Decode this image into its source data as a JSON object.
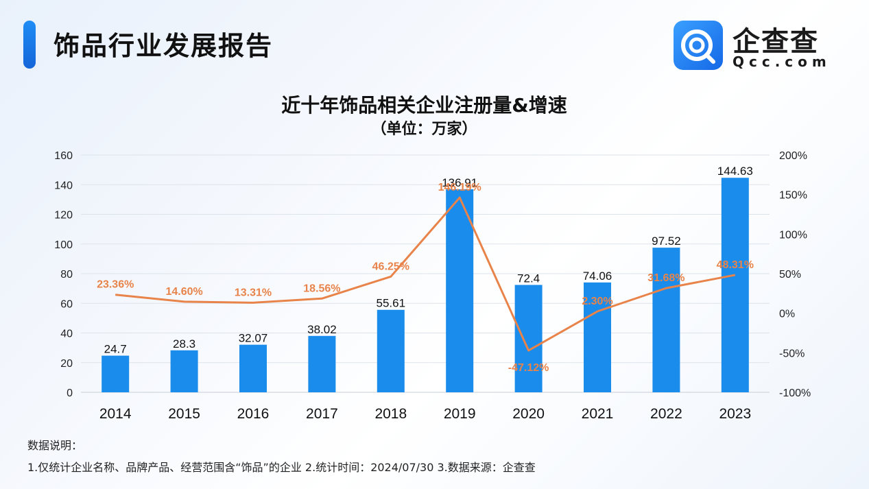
{
  "header": {
    "title": "饰品行业发展报告"
  },
  "logo": {
    "name": "企查查",
    "domain": "Qcc.com",
    "icon": "qcc-logo-icon"
  },
  "chart_data": {
    "type": "bar+line",
    "title": "近十年饰品相关企业注册量&增速",
    "subtitle": "（单位：万家）",
    "categories": [
      "2014",
      "2015",
      "2016",
      "2017",
      "2018",
      "2019",
      "2020",
      "2021",
      "2022",
      "2023"
    ],
    "series": [
      {
        "type": "bar",
        "axis": "left",
        "values": [
          24.7,
          28.3,
          32.07,
          38.02,
          55.61,
          136.91,
          72.4,
          74.06,
          97.52,
          144.63
        ],
        "labels": [
          "24.7",
          "28.3",
          "32.07",
          "38.02",
          "55.61",
          "136.91",
          "72.4",
          "74.06",
          "97.52",
          "144.63"
        ],
        "color": "#1a8ceb"
      },
      {
        "type": "line",
        "axis": "right",
        "values": [
          23.36,
          14.6,
          13.31,
          18.56,
          46.25,
          146.19,
          -47.12,
          2.3,
          31.68,
          48.31
        ],
        "labels": [
          "23.36%",
          "14.60%",
          "13.31%",
          "18.56%",
          "46.25%",
          "146.19%",
          "-47.12%",
          "2.30%",
          "31.68%",
          "48.31%"
        ],
        "color": "#e8834a"
      }
    ],
    "y_left": {
      "min": 0,
      "max": 160,
      "ticks": [
        "0",
        "20",
        "40",
        "60",
        "80",
        "100",
        "120",
        "140",
        "160"
      ]
    },
    "y_right": {
      "min": -100,
      "max": 200,
      "ticks": [
        "-100%",
        "-50%",
        "0%",
        "50%",
        "100%",
        "150%",
        "200%"
      ]
    },
    "grid": true
  },
  "notes": {
    "heading": "数据说明：",
    "body": "1.仅统计企业名称、品牌产品、经营范围含“饰品”的企业   2.统计时间：2024/07/30    3.数据来源：企查查"
  }
}
